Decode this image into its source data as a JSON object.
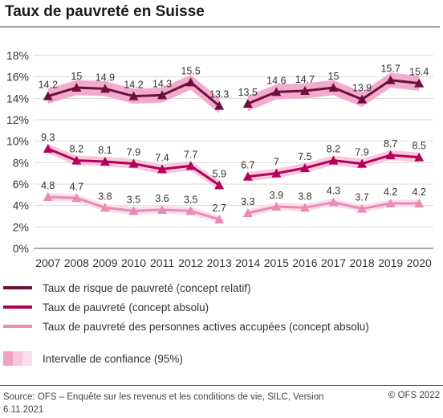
{
  "title": "Taux de pauvreté en Suisse",
  "chart_data": {
    "type": "line",
    "title": "Taux de pauvreté en Suisse",
    "x": [
      "2007",
      "2008",
      "2009",
      "2010",
      "2011",
      "2012",
      "2013",
      "2014",
      "2015",
      "2016",
      "2017",
      "2018",
      "2019",
      "2020"
    ],
    "y_ticks": [
      "0%",
      "2%",
      "4%",
      "6%",
      "8%",
      "10%",
      "12%",
      "14%",
      "16%",
      "18%"
    ],
    "ylim": [
      0,
      18
    ],
    "grid": true,
    "gap_between": [
      "2013",
      "2014"
    ],
    "series": [
      {
        "name": "Taux de risque de pauvreté (concept relatif)",
        "color": "#6b0f3e",
        "band_color": "#f2a7c8",
        "values": [
          14.2,
          15,
          14.9,
          14.2,
          14.3,
          15.5,
          13.3,
          13.5,
          14.6,
          14.7,
          15,
          13.9,
          15.7,
          15.4
        ],
        "labels": [
          "14.2",
          "15",
          "14.9",
          "14.2",
          "14.3",
          "15.5",
          "13.3",
          "13.5",
          "14.6",
          "14.7",
          "15",
          "13.9",
          "15.7",
          "15.4"
        ]
      },
      {
        "name": "Taux de pauvreté (concept absolu)",
        "color": "#b5005b",
        "band_color": "#f7c6db",
        "values": [
          9.3,
          8.2,
          8.1,
          7.9,
          7.4,
          7.7,
          5.9,
          6.7,
          7,
          7.5,
          8.2,
          7.9,
          8.7,
          8.5
        ],
        "labels": [
          "9.3",
          "8.2",
          "8.1",
          "7.9",
          "7.4",
          "7.7",
          "5.9",
          "6.7",
          "7",
          "7.5",
          "8.2",
          "7.9",
          "8.7",
          "8.5"
        ]
      },
      {
        "name": "Taux de pauvreté des personnes actives accupées (concept absolu)",
        "color": "#e88bb5",
        "band_color": "#fbdce9",
        "values": [
          4.8,
          4.7,
          3.8,
          3.5,
          3.6,
          3.5,
          2.7,
          3.3,
          3.9,
          3.8,
          4.3,
          3.7,
          4.2,
          4.2
        ],
        "labels": [
          "4.8",
          "4.7",
          "3.8",
          "3.5",
          "3.6",
          "3.5",
          "2.7",
          "3.3",
          "3.9",
          "3.8",
          "4.3",
          "3.7",
          "4.2",
          "4.2"
        ]
      }
    ],
    "ci_legend": "Intervalle de confiance (95%)",
    "ci_colors": [
      "#f0a3c4",
      "#f7c6db",
      "#fbdce9"
    ]
  },
  "legend": {
    "series1": "Taux de risque de pauvreté (concept relatif)",
    "series2": "Taux de pauvreté (concept absolu)",
    "series3": "Taux de pauvreté des personnes actives accupées (concept absolu)",
    "ci": "Intervalle de confiance (95%)"
  },
  "footer": {
    "source": "Source: OFS – Enquête sur les revenus et les conditions de vie, SILC, Version 6.11.2021",
    "copyright": "© OFS 2022"
  }
}
